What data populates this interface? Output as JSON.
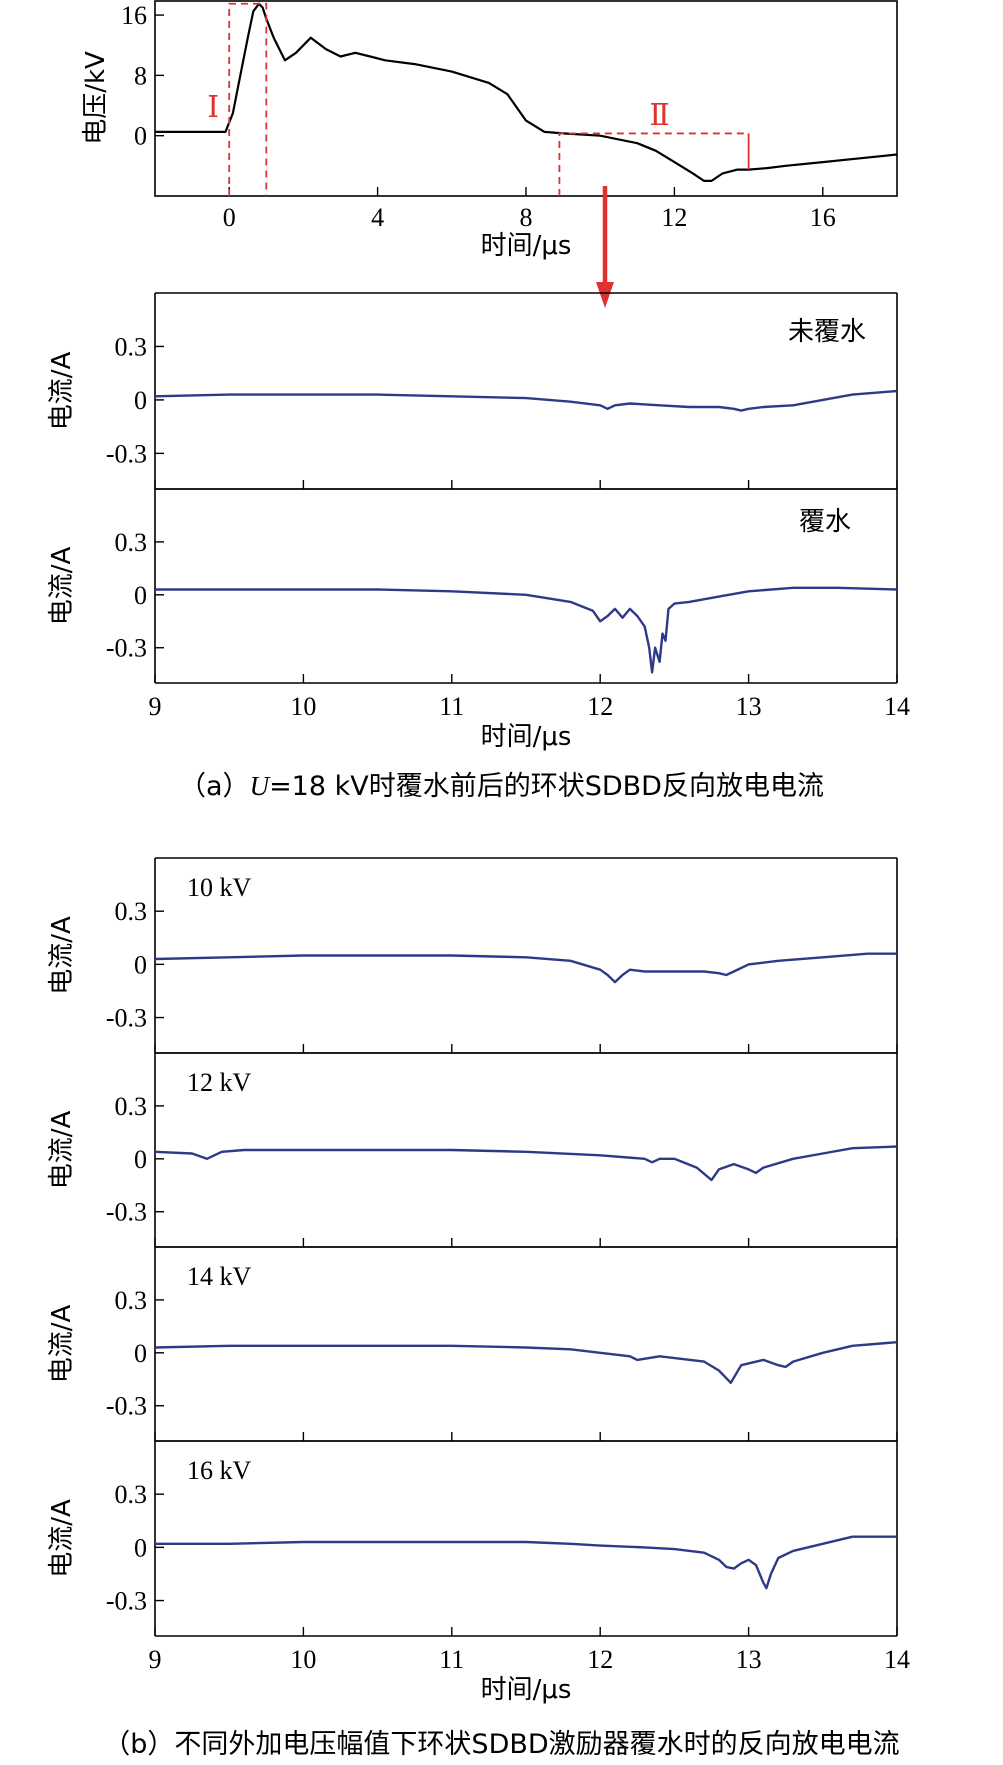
{
  "captions": {
    "a_prefix": "（a）",
    "a_symbol": "U",
    "a_rest": "=18 kV时覆水前后的环状SDBD反向放电电流",
    "b": "（b）不同外加电压幅值下环状SDBD激励器覆水时的反向放电电流"
  },
  "region_labels": [
    "Ⅰ",
    "Ⅱ"
  ],
  "colors": {
    "voltage": "#000000",
    "current": "#2e3a87",
    "annotation": "#e03030"
  },
  "chart_data": [
    {
      "id": "voltage",
      "type": "line",
      "xlabel": "时间/μs",
      "ylabel": "电压/kV",
      "xlim": [
        -2,
        18
      ],
      "ylim": [
        -8,
        18
      ],
      "xticks": [
        0,
        4,
        8,
        12,
        16
      ],
      "yticks": [
        0,
        8,
        16
      ],
      "x": [
        -2,
        -0.5,
        -0.1,
        0.1,
        0.3,
        0.5,
        0.65,
        0.8,
        0.9,
        1.0,
        1.2,
        1.5,
        1.8,
        2.2,
        2.6,
        3.0,
        3.4,
        3.8,
        4.2,
        5.0,
        6.0,
        7.0,
        7.5,
        8.0,
        8.5,
        9.0,
        10.0,
        11.0,
        11.5,
        12.0,
        12.5,
        12.8,
        13.0,
        13.3,
        13.7,
        14.0,
        14.5,
        15.0,
        16.0,
        17.0,
        18.0
      ],
      "y": [
        0.5,
        0.5,
        0.5,
        3,
        8,
        13,
        16.5,
        17.5,
        17,
        15.5,
        13,
        10,
        11,
        13,
        11.5,
        10.5,
        11,
        10.5,
        10,
        9.5,
        8.5,
        7,
        5.5,
        2,
        0.5,
        0.3,
        0,
        -1,
        -2,
        -3.5,
        -5,
        -6,
        -6,
        -5,
        -4.5,
        -4.5,
        -4.3,
        -4,
        -3.5,
        -3,
        -2.5
      ],
      "annotations": [
        {
          "label": "Ⅰ",
          "x": [
            0,
            1
          ],
          "y": [
            -8,
            17.5
          ]
        },
        {
          "label": "Ⅱ",
          "x": [
            8.9,
            14
          ],
          "y": [
            -8,
            0.3
          ]
        }
      ]
    },
    {
      "id": "uncovered",
      "type": "line",
      "label": "未覆水",
      "ylabel": "电流/A",
      "xlim": [
        9,
        14
      ],
      "ylim": [
        -0.5,
        0.6
      ],
      "yticks": [
        0.3,
        0,
        -0.3
      ],
      "x": [
        9,
        9.5,
        10,
        10.5,
        11,
        11.5,
        11.8,
        12.0,
        12.05,
        12.1,
        12.2,
        12.4,
        12.6,
        12.8,
        12.9,
        12.95,
        13.0,
        13.1,
        13.3,
        13.5,
        13.7,
        14
      ],
      "y": [
        0.02,
        0.03,
        0.03,
        0.03,
        0.02,
        0.01,
        -0.01,
        -0.03,
        -0.05,
        -0.03,
        -0.02,
        -0.03,
        -0.04,
        -0.04,
        -0.05,
        -0.06,
        -0.05,
        -0.04,
        -0.03,
        0.0,
        0.03,
        0.05
      ]
    },
    {
      "id": "covered",
      "type": "line",
      "label": "覆水",
      "ylabel": "电流/A",
      "xlim": [
        9,
        14
      ],
      "ylim": [
        -0.5,
        0.6
      ],
      "yticks": [
        0.3,
        0,
        -0.3
      ],
      "x": [
        9,
        9.5,
        10,
        10.5,
        11,
        11.5,
        11.8,
        11.95,
        12.0,
        12.05,
        12.1,
        12.15,
        12.2,
        12.25,
        12.3,
        12.33,
        12.35,
        12.37,
        12.4,
        12.42,
        12.44,
        12.46,
        12.5,
        12.6,
        12.8,
        13.0,
        13.3,
        13.6,
        14
      ],
      "y": [
        0.03,
        0.03,
        0.03,
        0.03,
        0.02,
        0.0,
        -0.04,
        -0.09,
        -0.15,
        -0.12,
        -0.08,
        -0.13,
        -0.08,
        -0.12,
        -0.18,
        -0.3,
        -0.44,
        -0.3,
        -0.38,
        -0.22,
        -0.26,
        -0.08,
        -0.05,
        -0.04,
        -0.01,
        0.02,
        0.04,
        0.04,
        0.03
      ]
    },
    {
      "id": "v10",
      "type": "line",
      "label": "10 kV",
      "ylabel": "电流/A",
      "xlim": [
        9,
        14
      ],
      "ylim": [
        -0.5,
        0.6
      ],
      "yticks": [
        0.3,
        0,
        -0.3
      ],
      "x": [
        9,
        9.5,
        10,
        10.5,
        11,
        11.5,
        11.8,
        12.0,
        12.05,
        12.1,
        12.15,
        12.2,
        12.3,
        12.5,
        12.7,
        12.8,
        12.85,
        12.9,
        13.0,
        13.2,
        13.5,
        13.8,
        14
      ],
      "y": [
        0.03,
        0.04,
        0.05,
        0.05,
        0.05,
        0.04,
        0.02,
        -0.03,
        -0.06,
        -0.1,
        -0.06,
        -0.03,
        -0.04,
        -0.04,
        -0.04,
        -0.05,
        -0.06,
        -0.04,
        0.0,
        0.02,
        0.04,
        0.06,
        0.06
      ]
    },
    {
      "id": "v12",
      "type": "line",
      "label": "12 kV",
      "ylabel": "电流/A",
      "xlim": [
        9,
        14
      ],
      "ylim": [
        -0.5,
        0.6
      ],
      "yticks": [
        0.3,
        0,
        -0.3
      ],
      "x": [
        9,
        9.25,
        9.35,
        9.45,
        9.6,
        10,
        10.5,
        11,
        11.5,
        12.0,
        12.3,
        12.35,
        12.4,
        12.5,
        12.65,
        12.75,
        12.8,
        12.9,
        13.0,
        13.05,
        13.1,
        13.3,
        13.5,
        13.7,
        14
      ],
      "y": [
        0.04,
        0.03,
        0.0,
        0.04,
        0.05,
        0.05,
        0.05,
        0.05,
        0.04,
        0.02,
        0.0,
        -0.02,
        0.0,
        0.0,
        -0.05,
        -0.12,
        -0.06,
        -0.03,
        -0.06,
        -0.08,
        -0.05,
        0.0,
        0.03,
        0.06,
        0.07
      ]
    },
    {
      "id": "v14",
      "type": "line",
      "label": "14 kV",
      "ylabel": "电流/A",
      "xlim": [
        9,
        14
      ],
      "ylim": [
        -0.5,
        0.6
      ],
      "yticks": [
        0.3,
        0,
        -0.3
      ],
      "x": [
        9,
        9.5,
        10,
        10.5,
        11,
        11.5,
        11.8,
        12.0,
        12.2,
        12.25,
        12.4,
        12.7,
        12.8,
        12.88,
        12.95,
        13.1,
        13.2,
        13.25,
        13.3,
        13.5,
        13.7,
        14
      ],
      "y": [
        0.03,
        0.04,
        0.04,
        0.04,
        0.04,
        0.03,
        0.02,
        0.0,
        -0.02,
        -0.04,
        -0.02,
        -0.05,
        -0.1,
        -0.17,
        -0.07,
        -0.04,
        -0.07,
        -0.08,
        -0.05,
        0.0,
        0.04,
        0.06
      ]
    },
    {
      "id": "v16",
      "type": "line",
      "label": "16 kV",
      "ylabel": "电流/A",
      "xlim": [
        9,
        14
      ],
      "ylim": [
        -0.5,
        0.6
      ],
      "yticks": [
        0.3,
        0,
        -0.3
      ],
      "x": [
        9,
        9.5,
        10,
        10.5,
        11,
        11.5,
        11.8,
        12.0,
        12.3,
        12.5,
        12.7,
        12.8,
        12.85,
        12.9,
        12.95,
        13.0,
        13.05,
        13.1,
        13.12,
        13.15,
        13.2,
        13.3,
        13.5,
        13.7,
        14
      ],
      "y": [
        0.02,
        0.02,
        0.03,
        0.03,
        0.03,
        0.03,
        0.02,
        0.01,
        0.0,
        -0.01,
        -0.03,
        -0.07,
        -0.11,
        -0.12,
        -0.09,
        -0.07,
        -0.1,
        -0.2,
        -0.23,
        -0.15,
        -0.06,
        -0.02,
        0.02,
        0.06,
        0.06
      ]
    }
  ],
  "shared_axis": {
    "xlabel": "时间/μs",
    "xticks": [
      9,
      10,
      11,
      12,
      13,
      14
    ]
  }
}
